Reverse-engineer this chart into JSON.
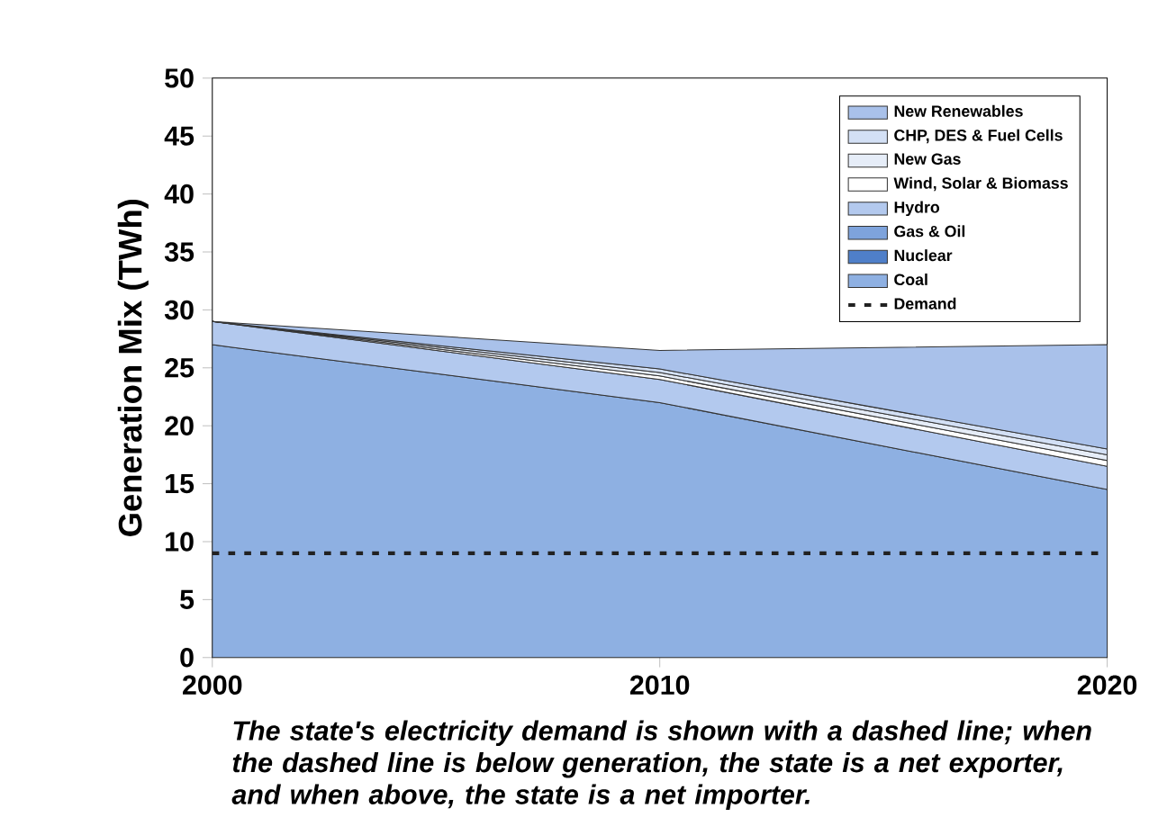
{
  "chart_data": {
    "type": "area",
    "stacked": true,
    "ylabel": "Generation Mix (TWh)",
    "x": [
      2000,
      2010,
      2020
    ],
    "xlim": [
      2000,
      2020
    ],
    "xticks": [
      2000,
      2010,
      2020
    ],
    "ylim": [
      0,
      50
    ],
    "yticks": [
      0,
      5,
      10,
      15,
      20,
      25,
      30,
      35,
      40,
      45,
      50
    ],
    "legend": "top right",
    "grid": false,
    "series": [
      {
        "name": "Coal",
        "color": "#8eb0e2",
        "values": [
          27,
          22,
          14.5
        ]
      },
      {
        "name": "Nuclear",
        "color": "#4f7fc9",
        "values": [
          null,
          null,
          null
        ]
      },
      {
        "name": "Gas & Oil",
        "color": "#7ea3dc",
        "values": [
          null,
          null,
          null
        ]
      },
      {
        "name": "Hydro",
        "color": "#b3c9ee",
        "values": [
          2,
          2,
          2
        ]
      },
      {
        "name": "Wind, Solar & Biomass",
        "color": "#ffffff",
        "values": [
          0,
          0.3,
          0.5
        ]
      },
      {
        "name": "New Gas",
        "color": "#e6edf8",
        "values": [
          0,
          0.3,
          0.5
        ]
      },
      {
        "name": "CHP, DES & Fuel Cells",
        "color": "#d3e0f5",
        "values": [
          0,
          0.3,
          0.5
        ]
      },
      {
        "name": "New Renewables",
        "color": "#a9c1ea",
        "values": [
          0,
          1.6,
          9
        ]
      },
      {
        "name": "Demand",
        "type": "line",
        "line_style": "dotted",
        "color": "#222222",
        "values": [
          9,
          9,
          9
        ]
      }
    ],
    "annotations": [
      "The state's electricity demand is shown with a dashed line; when the dashed line is below generation, the state is a net exporter, and when above, the state is a net importer."
    ]
  }
}
